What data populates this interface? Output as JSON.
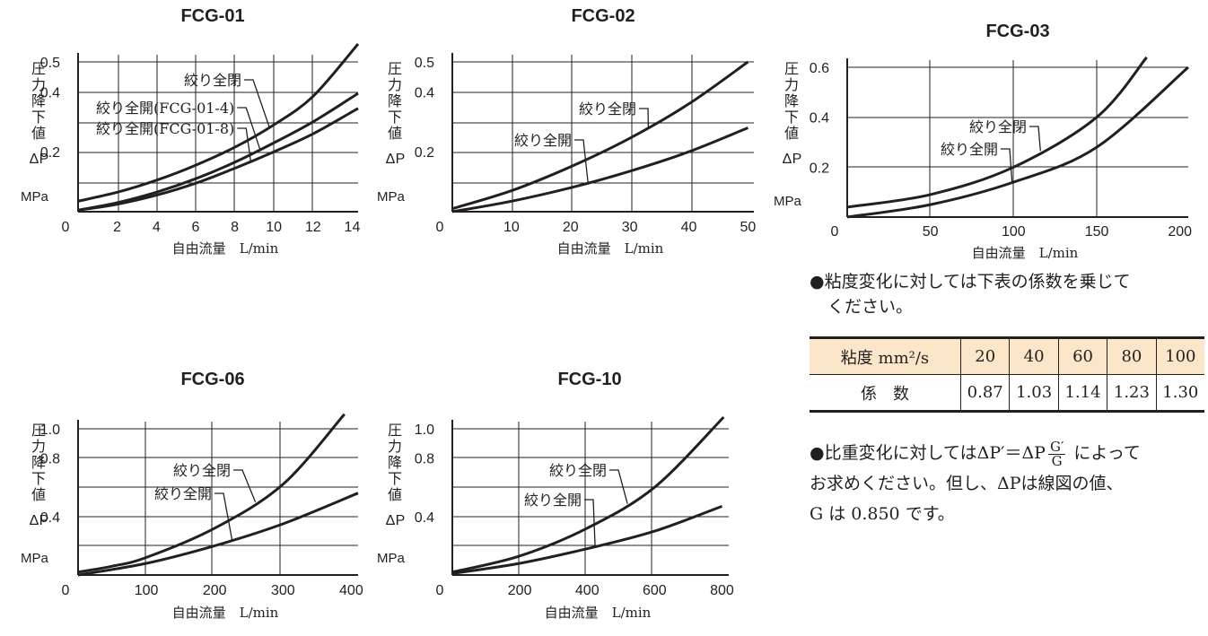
{
  "chart_data": [
    {
      "type": "line",
      "title": "FCG-01",
      "ylabel": "圧力降下値 ΔP",
      "yunit": "MPa",
      "xlabel": "自由流量　L/min",
      "xlim": [
        0,
        14.3
      ],
      "ylim": [
        0,
        0.55
      ],
      "xticks": [
        0,
        2,
        4,
        6,
        8,
        10,
        12,
        14
      ],
      "yticks": [
        {
          "v": 0.2,
          "label": "0.2"
        },
        {
          "v": 0.4,
          "label": "0.4"
        },
        {
          "v": 0.5,
          "label": "0.5"
        }
      ],
      "grid": true,
      "series": [
        {
          "name": "絞り全閉",
          "x": [
            0,
            2,
            4,
            6,
            8,
            10,
            12,
            14.3
          ],
          "y": [
            0.035,
            0.065,
            0.105,
            0.155,
            0.215,
            0.29,
            0.385,
            0.56
          ]
        },
        {
          "name": "絞り全開(FCG-01-4)",
          "x": [
            0,
            2,
            4,
            6,
            8,
            10,
            12,
            14.3
          ],
          "y": [
            0.005,
            0.03,
            0.065,
            0.11,
            0.165,
            0.23,
            0.3,
            0.395
          ]
        },
        {
          "name": "絞り全開(FCG-01-8)",
          "x": [
            0,
            2,
            4,
            6,
            8,
            10,
            12,
            14.3
          ],
          "y": [
            0.005,
            0.025,
            0.055,
            0.095,
            0.145,
            0.2,
            0.26,
            0.345
          ]
        }
      ],
      "annotations": [
        {
          "text": "絞り全閉",
          "series": 0
        },
        {
          "text": "絞り全開(FCG-01-4)",
          "series": 1
        },
        {
          "text": "絞り全開(FCG-01-8)",
          "series": 2
        }
      ]
    },
    {
      "type": "line",
      "title": "FCG-02",
      "ylabel": "圧力降下値 ΔP",
      "yunit": "MPa",
      "xlabel": "自由流量　L/min",
      "xlim": [
        0,
        51
      ],
      "ylim": [
        0,
        0.52
      ],
      "xticks": [
        0,
        10,
        20,
        30,
        40,
        50
      ],
      "yticks": [
        {
          "v": 0.2,
          "label": "0.2"
        },
        {
          "v": 0.4,
          "label": "0.4"
        },
        {
          "v": 0.5,
          "label": "0.5"
        }
      ],
      "grid": true,
      "series": [
        {
          "name": "絞り全閉",
          "x": [
            0,
            10,
            20,
            30,
            40,
            50
          ],
          "y": [
            0.01,
            0.07,
            0.15,
            0.245,
            0.36,
            0.5
          ]
        },
        {
          "name": "絞り全開",
          "x": [
            0,
            10,
            20,
            30,
            40,
            50
          ],
          "y": [
            0,
            0.035,
            0.08,
            0.135,
            0.2,
            0.28
          ]
        }
      ],
      "annotations": [
        {
          "text": "絞り全閉",
          "series": 0
        },
        {
          "text": "絞り全開",
          "series": 1
        }
      ]
    },
    {
      "type": "line",
      "title": "FCG-03",
      "ylabel": "圧力降下値 ΔP",
      "yunit": "MPa",
      "xlabel": "自由流量　L/min",
      "xlim": [
        0,
        205
      ],
      "ylim": [
        0,
        0.65
      ],
      "xticks": [
        0,
        50,
        100,
        150,
        200
      ],
      "yticks": [
        {
          "v": 0.2,
          "label": "0.2"
        },
        {
          "v": 0.4,
          "label": "0.4"
        },
        {
          "v": 0.6,
          "label": "0.6"
        }
      ],
      "grid": true,
      "series": [
        {
          "name": "絞り全閉",
          "x": [
            0,
            50,
            100,
            150,
            180
          ],
          "y": [
            0.04,
            0.09,
            0.2,
            0.4,
            0.64
          ]
        },
        {
          "name": "絞り全開",
          "x": [
            0,
            50,
            100,
            150,
            205
          ],
          "y": [
            0,
            0.05,
            0.14,
            0.28,
            0.6
          ]
        }
      ],
      "annotations": [
        {
          "text": "絞り全閉",
          "series": 0
        },
        {
          "text": "絞り全開",
          "series": 1
        }
      ]
    },
    {
      "type": "line",
      "title": "FCG-06",
      "ylabel": "圧力降下値 ΔP",
      "yunit": "MPa",
      "xlabel": "自由流量　L/min",
      "xlim": [
        0,
        410
      ],
      "ylim": [
        0,
        1.12
      ],
      "xticks": [
        0,
        100,
        200,
        300,
        400
      ],
      "yticks": [
        {
          "v": 0.4,
          "label": "0.4"
        },
        {
          "v": 0.8,
          "label": "0.8"
        },
        {
          "v": 1.0,
          "label": "1.0"
        }
      ],
      "grid": true,
      "series": [
        {
          "name": "絞り全閉",
          "x": [
            0,
            50,
            100,
            200,
            300,
            390
          ],
          "y": [
            0.02,
            0.06,
            0.12,
            0.32,
            0.62,
            1.1
          ]
        },
        {
          "name": "絞り全開",
          "x": [
            0,
            100,
            200,
            300,
            410
          ],
          "y": [
            0,
            0.08,
            0.2,
            0.35,
            0.56
          ]
        }
      ],
      "annotations": [
        {
          "text": "絞り全閉",
          "series": 0
        },
        {
          "text": "絞り全開",
          "series": 1
        }
      ]
    },
    {
      "type": "line",
      "title": "FCG-10",
      "ylabel": "圧力降下値 ΔP",
      "yunit": "MPa",
      "xlabel": "自由流量　L/min",
      "xlim": [
        0,
        820
      ],
      "ylim": [
        0,
        1.12
      ],
      "xticks": [
        0,
        200,
        400,
        600,
        800
      ],
      "yticks": [
        {
          "v": 0.4,
          "label": "0.4"
        },
        {
          "v": 0.8,
          "label": "0.8"
        },
        {
          "v": 1.0,
          "label": "1.0"
        }
      ],
      "grid": true,
      "series": [
        {
          "name": "絞り全閉",
          "x": [
            0,
            200,
            400,
            600,
            805
          ],
          "y": [
            0.02,
            0.13,
            0.32,
            0.6,
            1.08
          ]
        },
        {
          "name": "絞り全開",
          "x": [
            0,
            200,
            400,
            600,
            800
          ],
          "y": [
            0.01,
            0.08,
            0.18,
            0.3,
            0.47
          ]
        }
      ],
      "annotations": [
        {
          "text": "絞り全閉",
          "series": 0
        },
        {
          "text": "絞り全開",
          "series": 1
        }
      ]
    }
  ],
  "notes": {
    "viscosity_line1": "●粘度変化に対しては下表の係数を乗じて",
    "viscosity_line2": "ください。",
    "table_header": "粘度 mm²/s",
    "table_row_label": "係　数",
    "viscosities": [
      "20",
      "40",
      "60",
      "80",
      "100"
    ],
    "coefficients": [
      "0.87",
      "1.03",
      "1.14",
      "1.23",
      "1.30"
    ],
    "gravity_prefix": "●比重変化に対してはΔP′＝ΔP",
    "gravity_num": "G′",
    "gravity_den": "G",
    "gravity_suffix": " によって",
    "gravity_line2": "お求めください。但し、ΔPは線図の値、",
    "gravity_line3": "G は 0.850 です。"
  },
  "colors": {
    "line": "#231f20",
    "table_header_bg": "#fbe6c9"
  }
}
